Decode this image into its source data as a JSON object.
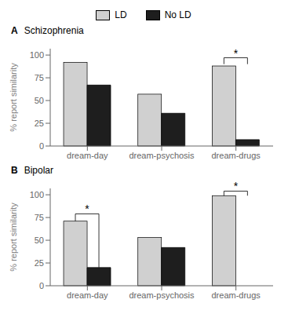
{
  "chart_data": [
    {
      "type": "bar",
      "title": "Schizophrenia",
      "categories": [
        "dream-day",
        "dream-psychosis",
        "dream-drugs"
      ],
      "series": [
        {
          "name": "LD",
          "color": "#d0d0d0",
          "values": [
            92,
            57,
            88
          ]
        },
        {
          "name": "No LD",
          "color": "#1e1e1e",
          "values": [
            67,
            36,
            7
          ]
        }
      ],
      "ylabel": "% report similarity",
      "ylim": [
        0,
        107
      ],
      "yticks": [
        0,
        25,
        50,
        75,
        100
      ],
      "grid": false,
      "legend": "top",
      "annotations": [
        {
          "text": "A"
        },
        {
          "text": "*",
          "category": "dream-drugs",
          "left_y": 90,
          "right_y": 90,
          "top": 97,
          "star_y": 97
        }
      ]
    },
    {
      "type": "bar",
      "title": "Bipolar",
      "categories": [
        "dream-day",
        "dream-psychosis",
        "dream-drugs"
      ],
      "series": [
        {
          "name": "LD",
          "color": "#d0d0d0",
          "values": [
            71,
            53,
            99
          ]
        },
        {
          "name": "No LD",
          "color": "#1e1e1e",
          "values": [
            20,
            42,
            0
          ]
        }
      ],
      "ylabel": "% report similarity",
      "ylim": [
        0,
        107
      ],
      "yticks": [
        0,
        25,
        50,
        75,
        100
      ],
      "grid": false,
      "annotations": [
        {
          "text": "B"
        },
        {
          "text": "*",
          "category": "dream-day",
          "left_y": 71,
          "right_y": 20,
          "top": 79,
          "star_y": 79
        },
        {
          "text": "*",
          "category": "dream-drugs",
          "left_y": 99,
          "right_y": 99,
          "top": 104,
          "star_y": 104
        }
      ]
    }
  ]
}
